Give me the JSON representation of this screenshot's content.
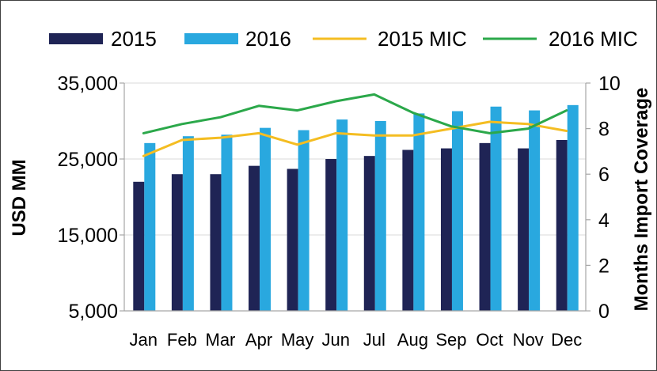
{
  "chart_data": {
    "type": "bar",
    "categories": [
      "Jan",
      "Feb",
      "Mar",
      "Apr",
      "May",
      "Jun",
      "Jul",
      "Aug",
      "Sep",
      "Oct",
      "Nov",
      "Dec"
    ],
    "series": [
      {
        "name": "2015",
        "type": "bar",
        "axis": "left",
        "color": "#1f2455",
        "values": [
          22000,
          23000,
          23000,
          24100,
          23700,
          25000,
          25400,
          26200,
          26400,
          27100,
          26400,
          27500
        ]
      },
      {
        "name": "2016",
        "type": "bar",
        "axis": "left",
        "color": "#29a8df",
        "values": [
          27100,
          28000,
          28200,
          29100,
          28800,
          30200,
          30000,
          31000,
          31300,
          31900,
          31400,
          32100
        ]
      },
      {
        "name": "2015 MIC",
        "type": "line",
        "axis": "right",
        "color": "#f4bd22",
        "values": [
          6.8,
          7.5,
          7.6,
          7.8,
          7.3,
          7.8,
          7.7,
          7.7,
          8.0,
          8.3,
          8.2,
          7.9
        ]
      },
      {
        "name": "2016 MIC",
        "type": "line",
        "axis": "right",
        "color": "#2ba84a",
        "values": [
          7.8,
          8.2,
          8.5,
          9.0,
          8.8,
          9.2,
          9.5,
          8.7,
          8.1,
          7.8,
          8.0,
          8.8
        ]
      }
    ],
    "ylabel": "USD MM",
    "y2label": "Months Import Coverage",
    "ylim": [
      5000,
      35000
    ],
    "y2lim": [
      0,
      10
    ],
    "yticks": [
      {
        "value": 5000,
        "label": "5,000"
      },
      {
        "value": 15000,
        "label": "15,000"
      },
      {
        "value": 25000,
        "label": "25,000"
      },
      {
        "value": 35000,
        "label": "35,000"
      }
    ],
    "y2ticks": [
      {
        "value": 0,
        "label": "0"
      },
      {
        "value": 2,
        "label": "2"
      },
      {
        "value": 4,
        "label": "4"
      },
      {
        "value": 6,
        "label": "6"
      },
      {
        "value": 8,
        "label": "8"
      },
      {
        "value": 10,
        "label": "10"
      }
    ],
    "grid": true,
    "legend": "top"
  }
}
